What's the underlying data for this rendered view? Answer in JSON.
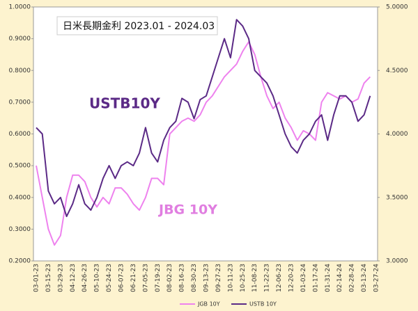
{
  "chart_data": {
    "type": "line",
    "title": "日米長期金利 2023.01 - 2024.03",
    "annotations": [
      {
        "text": "USTB10Y"
      },
      {
        "text": "JBG 10Y"
      }
    ],
    "categories": [
      "03-01-23",
      null,
      "03-15-23",
      null,
      "03-29-23",
      null,
      "04-12-23",
      null,
      "04-26-23",
      null,
      "05-10-23",
      null,
      "05-24-23",
      null,
      "06-07-23",
      null,
      "06-21-23",
      null,
      "07-05-23",
      null,
      "07-19-23",
      null,
      "08-02-23",
      null,
      "08-16-23",
      null,
      "08-30-23",
      null,
      "09-13-23",
      null,
      "09-27-23",
      null,
      "10-11-23",
      null,
      "10-25-23",
      null,
      "11-08-23",
      null,
      "11-22-23",
      null,
      "12-06-23",
      null,
      "12-20-23",
      null,
      "01-03-24",
      null,
      "01-17-24",
      null,
      "01-31-24",
      null,
      "02-14-24",
      null,
      "02-28-24",
      null,
      "03-13-24",
      null,
      "03-27-24"
    ],
    "series": [
      {
        "name": "JGB 10Y",
        "color": "#ee82ee",
        "values": [
          0.5,
          0.4,
          0.3,
          0.25,
          0.28,
          0.4,
          0.47,
          0.47,
          0.45,
          0.4,
          0.37,
          0.4,
          0.38,
          0.43,
          0.43,
          0.41,
          0.38,
          0.36,
          0.4,
          0.46,
          0.46,
          0.44,
          0.6,
          0.62,
          0.64,
          0.65,
          0.64,
          0.66,
          0.7,
          0.72,
          0.75,
          0.78,
          0.8,
          0.82,
          0.86,
          0.89,
          0.85,
          0.78,
          0.72,
          0.68,
          0.7,
          0.65,
          0.62,
          0.58,
          0.61,
          0.6,
          0.58,
          0.7,
          0.73,
          0.72,
          0.71,
          0.72,
          0.7,
          0.71,
          0.76,
          0.78,
          null
        ]
      },
      {
        "name": "USTB 10Y",
        "color": "#5b2a86",
        "axis": "y2",
        "values": [
          4.05,
          4.0,
          3.55,
          3.45,
          3.5,
          3.35,
          3.45,
          3.6,
          3.45,
          3.4,
          3.5,
          3.65,
          3.75,
          3.65,
          3.75,
          3.78,
          3.75,
          3.85,
          4.05,
          3.85,
          3.78,
          3.95,
          4.05,
          4.1,
          4.28,
          4.25,
          4.12,
          4.27,
          4.3,
          4.45,
          4.6,
          4.75,
          4.6,
          4.9,
          4.85,
          4.75,
          4.5,
          4.45,
          4.4,
          4.3,
          4.15,
          4.0,
          3.9,
          3.85,
          3.95,
          4.0,
          4.1,
          4.15,
          3.95,
          4.15,
          4.3,
          4.3,
          4.25,
          4.1,
          4.15,
          4.3,
          null
        ]
      }
    ],
    "ylim": [
      0.2,
      1.0
    ],
    "yticks": [
      {
        "value": 0.2,
        "label": "0.2000"
      },
      {
        "value": 0.3,
        "label": "0.3000"
      },
      {
        "value": 0.4,
        "label": "0.4000"
      },
      {
        "value": 0.5,
        "label": "0.5000"
      },
      {
        "value": 0.6,
        "label": "0.6000"
      },
      {
        "value": 0.7,
        "label": "0.7000"
      },
      {
        "value": 0.8,
        "label": "0.8000"
      },
      {
        "value": 0.9,
        "label": "0.9000"
      },
      {
        "value": 1.0,
        "label": "1.0000"
      }
    ],
    "y2lim": [
      3.0,
      5.0
    ],
    "y2ticks": [
      {
        "value": 3.0,
        "label": "3.0000"
      },
      {
        "value": 3.5,
        "label": "3.5000"
      },
      {
        "value": 4.0,
        "label": "4.0000"
      },
      {
        "value": 4.5,
        "label": "4.5000"
      },
      {
        "value": 5.0,
        "label": "5.0000"
      }
    ]
  }
}
